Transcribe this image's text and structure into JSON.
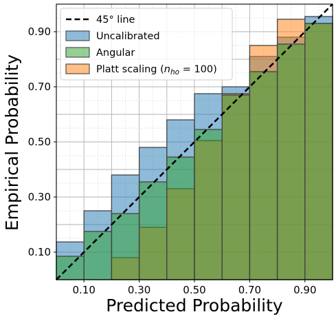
{
  "chart_data": {
    "type": "bar",
    "xlabel": "Predicted Probability",
    "ylabel": "Empirical Probability",
    "xlim": [
      0,
      1
    ],
    "ylim": [
      0,
      1
    ],
    "grid": true,
    "legend_placement": "top-left",
    "bin_edges": [
      0,
      0.1,
      0.2,
      0.3,
      0.4,
      0.5,
      0.6,
      0.7,
      0.8,
      0.9,
      1.0
    ],
    "xticks": [
      "0.10",
      "0.30",
      "0.50",
      "0.70",
      "0.90"
    ],
    "yticks": [
      "0.10",
      "0.30",
      "0.50",
      "0.70",
      "0.90"
    ],
    "reference_line": {
      "name": "45° line",
      "color": "#000000"
    },
    "series": [
      {
        "name": "Uncalibrated",
        "color": "#1f77b4",
        "values": [
          0.137,
          0.25,
          0.38,
          0.48,
          0.58,
          0.675,
          0.7,
          0.81,
          0.88,
          0.955
        ]
      },
      {
        "name": "Platt scaling",
        "color": "#ff7f0e",
        "values": [
          0.0,
          0.0,
          0.08,
          0.19,
          0.33,
          0.505,
          0.675,
          0.85,
          0.945,
          0.93
        ]
      },
      {
        "name": "Angular",
        "color": "#2ca02c",
        "values": [
          0.085,
          0.175,
          0.24,
          0.355,
          0.445,
          0.545,
          0.67,
          0.755,
          0.855,
          0.93
        ]
      }
    ],
    "legend": [
      {
        "label": "45° line",
        "kind": "line",
        "color": "#000000"
      },
      {
        "label": "Uncalibrated",
        "kind": "patch",
        "color": "#1f77b4"
      },
      {
        "label": "Angular",
        "kind": "patch",
        "color": "#2ca02c"
      },
      {
        "label": "Platt scaling",
        "kind": "patch",
        "color": "#ff7f0e",
        "math_suffix": "(n_ho = 100)"
      }
    ]
  }
}
